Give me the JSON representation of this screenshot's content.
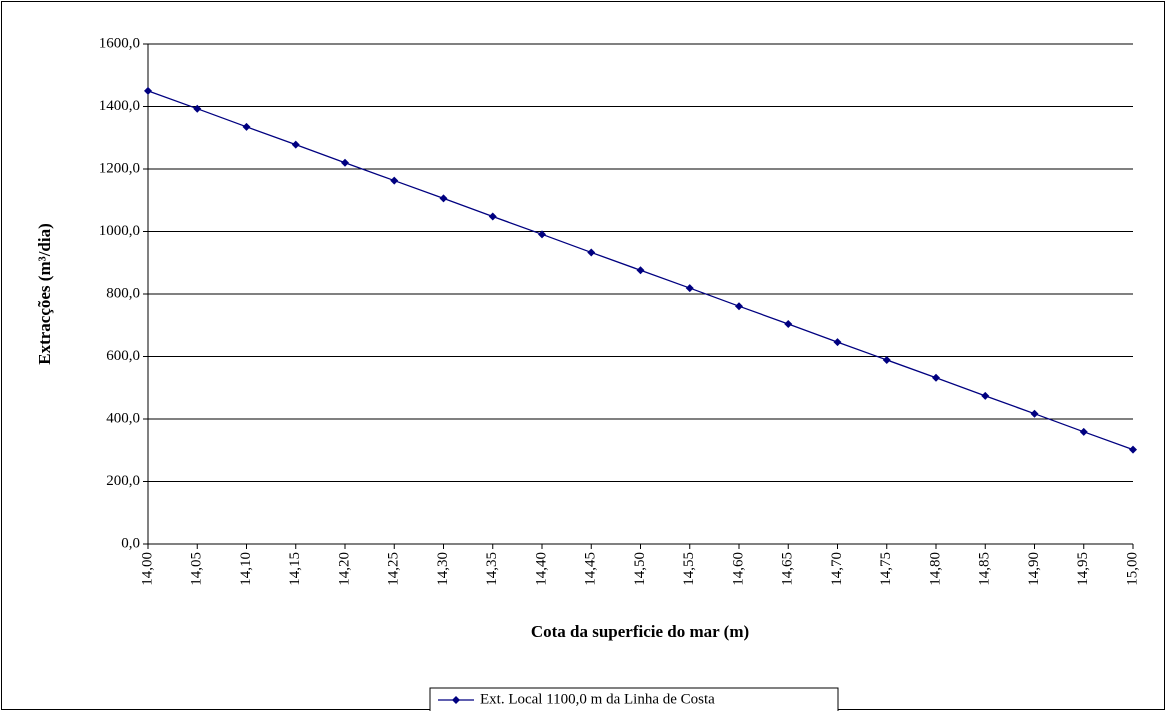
{
  "chart_data": {
    "type": "line",
    "x_label": "Cota da superficie do mar (m)",
    "y_label": "Extracções (m³/dia)",
    "x": [
      14.0,
      14.05,
      14.1,
      14.15,
      14.2,
      14.25,
      14.3,
      14.35,
      14.4,
      14.45,
      14.5,
      14.55,
      14.6,
      14.65,
      14.7,
      14.75,
      14.8,
      14.85,
      14.9,
      14.95,
      15.0
    ],
    "series": [
      {
        "name": "Ext. Local 1100,0 m da Linha de Costa",
        "color": "#000080",
        "values": [
          1450,
          1393,
          1335,
          1278,
          1220,
          1163,
          1106,
          1048,
          991,
          933,
          876,
          819,
          761,
          704,
          646,
          589,
          532,
          474,
          417,
          359,
          302
        ]
      }
    ],
    "xlim": [
      14.0,
      15.0
    ],
    "xticks": [
      {
        "value": 14.0,
        "label": "14,00"
      },
      {
        "value": 14.05,
        "label": "14,05"
      },
      {
        "value": 14.1,
        "label": "14,10"
      },
      {
        "value": 14.15,
        "label": "14,15"
      },
      {
        "value": 14.2,
        "label": "14,20"
      },
      {
        "value": 14.25,
        "label": "14,25"
      },
      {
        "value": 14.3,
        "label": "14,30"
      },
      {
        "value": 14.35,
        "label": "14,35"
      },
      {
        "value": 14.4,
        "label": "14,40"
      },
      {
        "value": 14.45,
        "label": "14,45"
      },
      {
        "value": 14.5,
        "label": "14,50"
      },
      {
        "value": 14.55,
        "label": "14,55"
      },
      {
        "value": 14.6,
        "label": "14,60"
      },
      {
        "value": 14.65,
        "label": "14,65"
      },
      {
        "value": 14.7,
        "label": "14,70"
      },
      {
        "value": 14.75,
        "label": "14,75"
      },
      {
        "value": 14.8,
        "label": "14,80"
      },
      {
        "value": 14.85,
        "label": "14,85"
      },
      {
        "value": 14.9,
        "label": "14,90"
      },
      {
        "value": 14.95,
        "label": "14,95"
      },
      {
        "value": 15.0,
        "label": "15,00"
      }
    ],
    "ylim": [
      0,
      1600
    ],
    "yticks": [
      {
        "value": 0,
        "label": "0,0"
      },
      {
        "value": 200,
        "label": "200,0"
      },
      {
        "value": 400,
        "label": "400,0"
      },
      {
        "value": 600,
        "label": "600,0"
      },
      {
        "value": 800,
        "label": "800,0"
      },
      {
        "value": 1000,
        "label": "1000,0"
      },
      {
        "value": 1200,
        "label": "1200,0"
      },
      {
        "value": 1400,
        "label": "1400,0"
      },
      {
        "value": 1600,
        "label": "1600,0"
      }
    ],
    "grid": true,
    "legend": "bottom"
  }
}
